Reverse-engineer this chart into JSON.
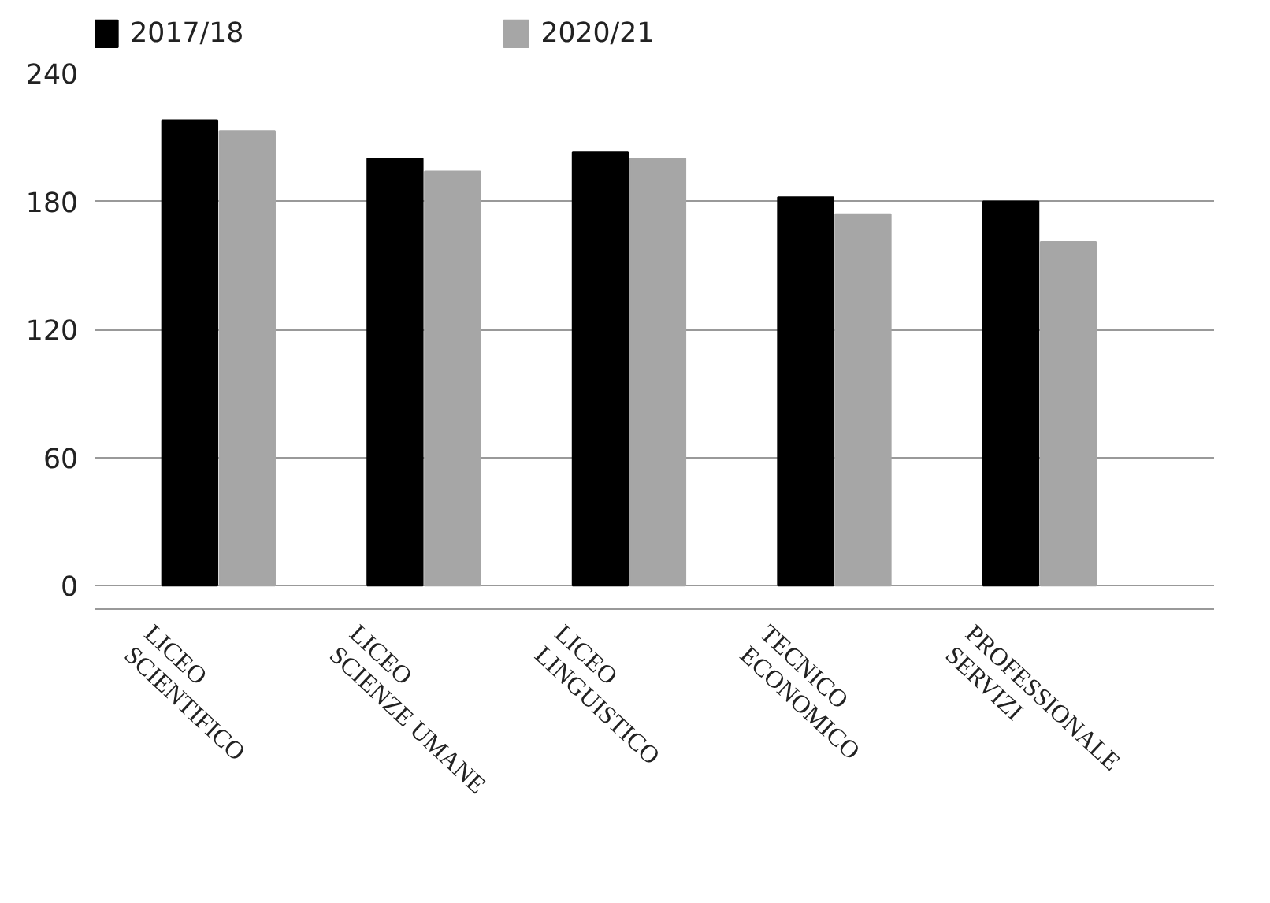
{
  "chart_data": {
    "type": "bar",
    "categories": [
      "LICEO\nSCIENTIFICO",
      "LICEO\nSCIENZE UMANE",
      "LICEO\nLINGUISTICO",
      "TECNICO\nECONOMICO",
      "PROFESSIONALE\nSERVIZI"
    ],
    "series": [
      {
        "name": "2017/18",
        "color": "#000000",
        "values": [
          218,
          200,
          203,
          182,
          180
        ]
      },
      {
        "name": "2020/21",
        "color": "#a6a6a6",
        "values": [
          213,
          194,
          200,
          174,
          161
        ]
      }
    ],
    "ylim": [
      -11,
      240
    ],
    "yticks": [
      0,
      60,
      120,
      180,
      240
    ],
    "grid": "y",
    "legend": "top"
  }
}
